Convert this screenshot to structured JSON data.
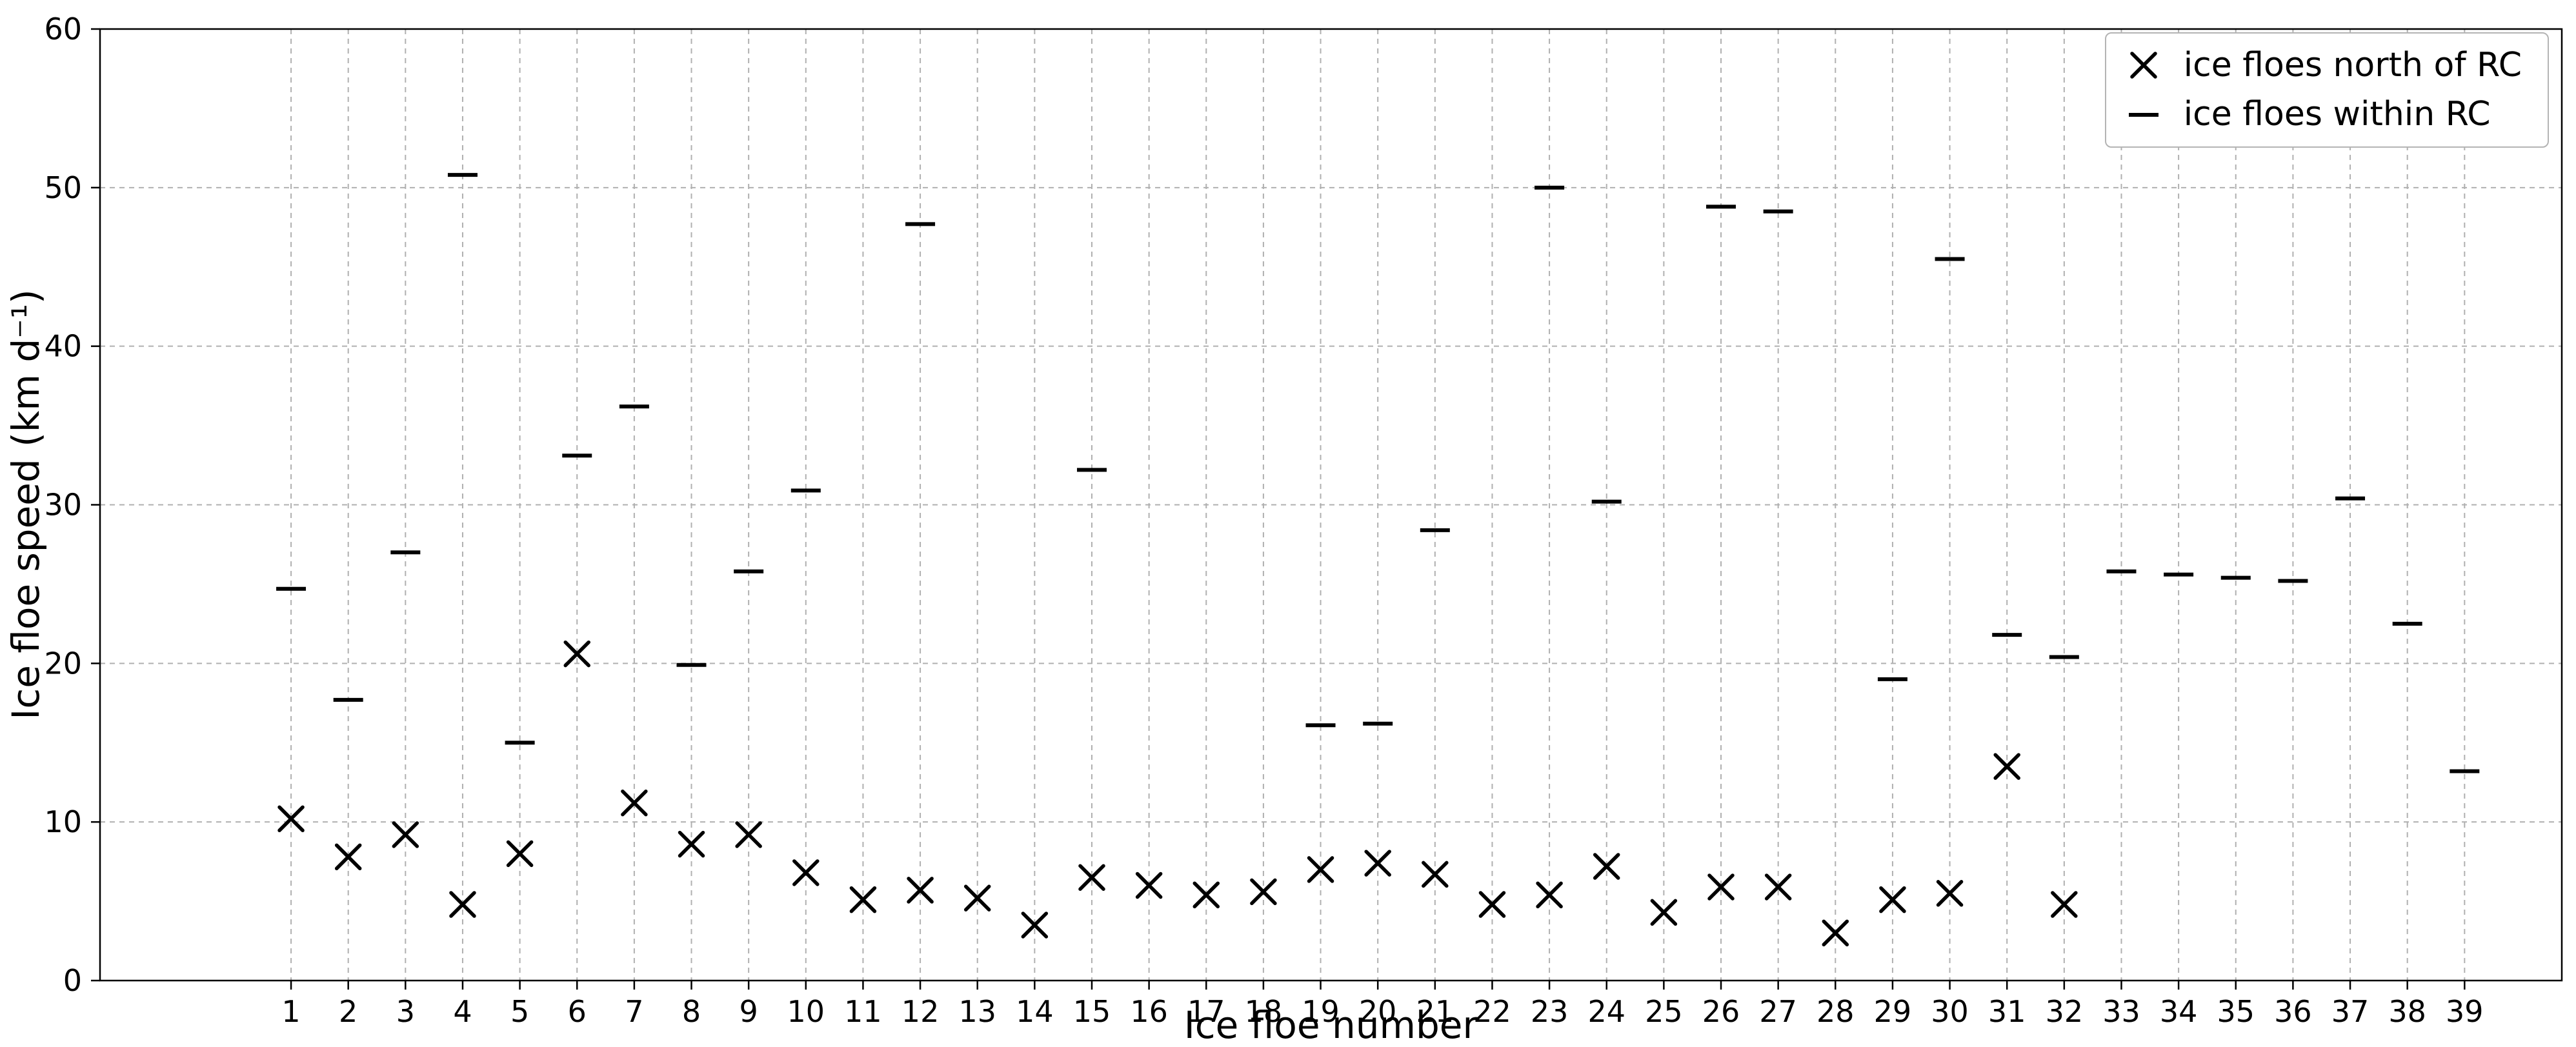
{
  "chart_data": {
    "type": "scatter",
    "title": "",
    "xlabel": "Ice floe number",
    "ylabel": "Ice floe speed (km d⁻¹)",
    "x_ticks": [
      1,
      2,
      3,
      4,
      5,
      6,
      7,
      8,
      9,
      10,
      11,
      12,
      13,
      14,
      15,
      16,
      17,
      18,
      19,
      20,
      21,
      22,
      23,
      24,
      25,
      26,
      27,
      28,
      29,
      30,
      31,
      32,
      33,
      34,
      35,
      36,
      37,
      38,
      39
    ],
    "y_ticks": [
      0,
      10,
      20,
      30,
      40,
      50,
      60
    ],
    "xlim": [
      -2.34,
      40.7
    ],
    "ylim": [
      0,
      60
    ],
    "grid": true,
    "grid_style": "dashed",
    "grid_color": "#b0b0b0",
    "frame_color": "#000000",
    "marker_color": "#000000",
    "background": "#ffffff",
    "legend_position": "upper right",
    "series": [
      {
        "name": "ice floes north of RC",
        "marker": "x",
        "color": "#000000",
        "x": [
          1,
          2,
          3,
          4,
          5,
          6,
          7,
          8,
          9,
          10,
          11,
          12,
          13,
          14,
          15,
          16,
          17,
          18,
          19,
          20,
          21,
          22,
          23,
          24,
          25,
          26,
          27,
          28,
          29,
          30,
          31,
          32
        ],
        "y": [
          10.2,
          7.8,
          9.2,
          4.8,
          8.0,
          20.6,
          11.2,
          8.6,
          9.2,
          6.8,
          5.1,
          5.7,
          5.2,
          3.5,
          6.5,
          6.0,
          5.4,
          5.6,
          7.0,
          7.4,
          6.7,
          4.8,
          5.4,
          7.2,
          4.3,
          5.9,
          5.9,
          3.0,
          5.1,
          5.5,
          13.5,
          4.8
        ]
      },
      {
        "name": "ice floes within RC",
        "marker": "hline",
        "color": "#000000",
        "x": [
          1,
          2,
          3,
          4,
          5,
          6,
          7,
          8,
          9,
          10,
          12,
          15,
          19,
          20,
          21,
          23,
          24,
          26,
          27,
          29,
          30,
          31,
          32,
          33,
          34,
          35,
          36,
          37,
          38,
          39
        ],
        "y": [
          24.7,
          17.7,
          27.0,
          50.8,
          15.0,
          33.1,
          36.2,
          19.9,
          25.8,
          30.9,
          47.7,
          32.2,
          16.1,
          16.2,
          28.4,
          50.0,
          30.2,
          48.8,
          48.5,
          19.0,
          45.5,
          21.8,
          20.4,
          25.8,
          25.6,
          25.4,
          25.2,
          30.4,
          22.5,
          13.2
        ]
      }
    ]
  }
}
